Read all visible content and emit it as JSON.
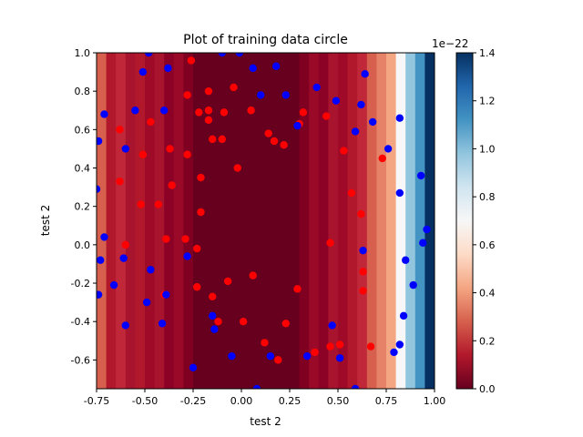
{
  "chart_data": {
    "type": "scatter",
    "title": "Plot of training data circle",
    "xlabel": "test 2",
    "ylabel": "test 2",
    "xlim": [
      -0.75,
      1.0
    ],
    "ylim": [
      -0.75,
      1.0
    ],
    "xticks": [
      "-0.75",
      "-0.50",
      "-0.25",
      "0.00",
      "0.25",
      "0.50",
      "0.75",
      "1.00"
    ],
    "xtick_values": [
      -0.75,
      -0.5,
      -0.25,
      0.0,
      0.25,
      0.5,
      0.75,
      1.0
    ],
    "yticks": [
      "-0.6",
      "-0.4",
      "-0.2",
      "0.0",
      "0.2",
      "0.4",
      "0.6",
      "0.8",
      "1.0"
    ],
    "ytick_values": [
      -0.6,
      -0.4,
      -0.2,
      0.0,
      0.2,
      0.4,
      0.6,
      0.8,
      1.0
    ],
    "background": {
      "type": "filled-contour-vertical-bands",
      "band_edges_x": [
        -0.75,
        -0.7,
        -0.65,
        -0.6,
        -0.55,
        -0.5,
        -0.45,
        -0.4,
        -0.35,
        -0.3,
        -0.25,
        0.3,
        0.35,
        0.4,
        0.45,
        0.5,
        0.55,
        0.6,
        0.65,
        0.7,
        0.75,
        0.8,
        0.85,
        0.9,
        0.95,
        1.0
      ],
      "band_colors": [
        "#d6604d",
        "#b2182b",
        "#c0283a",
        "#a8132d",
        "#b2182b",
        "#9e0a28",
        "#a8132d",
        "#8c0226",
        "#9a0927",
        "#800022",
        "#67001f",
        "#800022",
        "#9a0927",
        "#8c0226",
        "#a8132d",
        "#9e0a28",
        "#b2182b",
        "#c0283a",
        "#d6604d",
        "#e58267",
        "#f4a582",
        "#f7f7f7",
        "#92c5de",
        "#4393c3",
        "#053061"
      ]
    },
    "colorbar": {
      "min": 0.0,
      "max": 1.4,
      "ticks": [
        "0.0",
        "0.2",
        "0.4",
        "0.6",
        "0.8",
        "1.0",
        "1.2",
        "1.4"
      ],
      "tick_values": [
        0.0,
        0.2,
        0.4,
        0.6,
        0.8,
        1.0,
        1.2,
        1.4
      ],
      "offset_label": "1e−22",
      "colors": [
        "#67001f",
        "#b2182b",
        "#d6604d",
        "#f4a582",
        "#fddbc7",
        "#f7f7f7",
        "#d1e5f0",
        "#92c5de",
        "#4393c3",
        "#2166ac",
        "#053061"
      ]
    },
    "series": [
      {
        "color": "#ff0000",
        "points": [
          [
            -0.63,
            0.6
          ],
          [
            -0.47,
            0.64
          ],
          [
            -0.51,
            0.47
          ],
          [
            -0.37,
            0.5
          ],
          [
            -0.36,
            0.31
          ],
          [
            -0.63,
            0.33
          ],
          [
            -0.52,
            0.21
          ],
          [
            -0.43,
            0.21
          ],
          [
            -0.6,
            0.0
          ],
          [
            -0.39,
            0.03
          ],
          [
            -0.28,
            0.78
          ],
          [
            -0.26,
            0.96
          ],
          [
            -0.17,
            0.8
          ],
          [
            -0.22,
            0.69
          ],
          [
            -0.17,
            0.7
          ],
          [
            -0.17,
            0.65
          ],
          [
            -0.09,
            0.69
          ],
          [
            -0.04,
            0.82
          ],
          [
            -0.15,
            0.55
          ],
          [
            -0.1,
            0.55
          ],
          [
            -0.28,
            0.47
          ],
          [
            -0.21,
            0.35
          ],
          [
            -0.21,
            0.17
          ],
          [
            -0.29,
            0.03
          ],
          [
            -0.23,
            -0.02
          ],
          [
            -0.4,
            -0.26
          ],
          [
            -0.23,
            -0.22
          ],
          [
            -0.15,
            -0.27
          ],
          [
            -0.07,
            -0.19
          ],
          [
            -0.12,
            -0.4
          ],
          [
            -0.02,
            0.4
          ],
          [
            0.05,
            0.7
          ],
          [
            0.14,
            0.58
          ],
          [
            0.17,
            0.54
          ],
          [
            0.22,
            0.52
          ],
          [
            0.3,
            0.63
          ],
          [
            0.32,
            0.69
          ],
          [
            0.44,
            0.67
          ],
          [
            0.53,
            0.49
          ],
          [
            0.57,
            0.27
          ],
          [
            0.62,
            0.16
          ],
          [
            0.73,
            0.45
          ],
          [
            0.06,
            -0.16
          ],
          [
            0.01,
            -0.4
          ],
          [
            0.12,
            -0.51
          ],
          [
            0.19,
            -0.6
          ],
          [
            0.23,
            -0.41
          ],
          [
            0.29,
            -0.23
          ],
          [
            0.38,
            -0.56
          ],
          [
            0.46,
            0.01
          ],
          [
            0.46,
            -0.53
          ],
          [
            0.51,
            -0.52
          ],
          [
            0.63,
            -0.14
          ],
          [
            0.63,
            -0.24
          ],
          [
            0.67,
            -0.53
          ]
        ]
      },
      {
        "color": "#0000ff",
        "points": [
          [
            -0.74,
            0.54
          ],
          [
            -0.71,
            0.68
          ],
          [
            -0.75,
            0.29
          ],
          [
            -0.71,
            0.04
          ],
          [
            -0.73,
            -0.08
          ],
          [
            -0.66,
            -0.21
          ],
          [
            -0.74,
            -0.26
          ],
          [
            -0.6,
            0.5
          ],
          [
            -0.61,
            -0.07
          ],
          [
            -0.6,
            -0.42
          ],
          [
            -0.55,
            0.7
          ],
          [
            -0.51,
            0.9
          ],
          [
            -0.48,
            1.0
          ],
          [
            -0.4,
            0.7
          ],
          [
            -0.38,
            0.92
          ],
          [
            -0.47,
            -0.13
          ],
          [
            -0.49,
            -0.3
          ],
          [
            -0.41,
            -0.41
          ],
          [
            -0.39,
            -0.26
          ],
          [
            -0.28,
            -0.06
          ],
          [
            -0.25,
            -0.64
          ],
          [
            -0.15,
            -0.37
          ],
          [
            -0.14,
            -0.44
          ],
          [
            -0.1,
            1.0
          ],
          [
            -0.01,
            1.0
          ],
          [
            0.06,
            0.92
          ],
          [
            0.1,
            0.78
          ],
          [
            0.18,
            0.93
          ],
          [
            0.23,
            0.78
          ],
          [
            0.29,
            0.62
          ],
          [
            0.39,
            0.82
          ],
          [
            0.49,
            0.75
          ],
          [
            0.59,
            0.59
          ],
          [
            0.62,
            0.73
          ],
          [
            0.64,
            0.89
          ],
          [
            0.68,
            0.64
          ],
          [
            0.76,
            0.5
          ],
          [
            0.82,
            0.66
          ],
          [
            0.82,
            0.27
          ],
          [
            0.93,
            0.36
          ],
          [
            0.94,
            0.01
          ],
          [
            0.96,
            0.08
          ],
          [
            0.85,
            -0.08
          ],
          [
            0.89,
            -0.21
          ],
          [
            0.84,
            -0.37
          ],
          [
            0.82,
            -0.52
          ],
          [
            0.79,
            -0.56
          ],
          [
            0.63,
            -0.03
          ],
          [
            0.47,
            -0.42
          ],
          [
            0.51,
            -0.59
          ],
          [
            0.34,
            -0.58
          ],
          [
            0.15,
            -0.58
          ],
          [
            -0.05,
            -0.58
          ],
          [
            0.08,
            -0.75
          ],
          [
            0.59,
            -0.75
          ]
        ]
      }
    ]
  }
}
